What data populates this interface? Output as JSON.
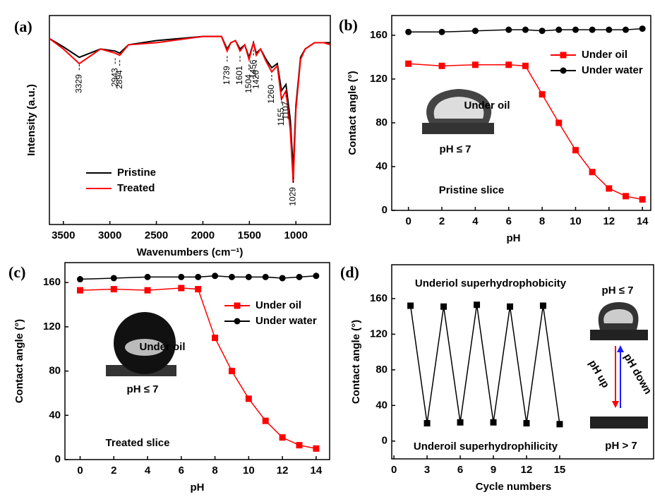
{
  "chart_data": [
    {
      "type": "line",
      "panel_label": "(a)",
      "x_label": "Wavenumbers (cm⁻¹)",
      "y_label": "Intensity (a.u.)",
      "xlim": [
        3650,
        630
      ],
      "xticks": [
        3500,
        3000,
        2500,
        2000,
        1500,
        1000
      ],
      "ylim": [
        0,
        100
      ],
      "x": [
        3650,
        3500,
        3329,
        3100,
        2943,
        2894,
        2800,
        2500,
        2000,
        1800,
        1739,
        1700,
        1650,
        1601,
        1550,
        1504,
        1456,
        1426,
        1380,
        1320,
        1260,
        1200,
        1155,
        1107,
        1060,
        1029,
        1000,
        950,
        900,
        800,
        700,
        630
      ],
      "series": [
        {
          "name": "Pristine",
          "color": "#000000",
          "values": [
            89,
            85,
            80,
            84,
            83,
            82,
            86,
            88,
            90,
            90,
            84,
            87,
            88,
            84,
            86,
            80,
            87,
            82,
            84,
            79,
            75,
            77,
            64,
            67,
            50,
            26,
            57,
            80,
            84,
            87,
            87,
            87
          ]
        },
        {
          "name": "Treated",
          "color": "#ff0000",
          "values": [
            89,
            84,
            77,
            84,
            82,
            81,
            86,
            87,
            90,
            90,
            83,
            87,
            88,
            83,
            86,
            79,
            87,
            81,
            84,
            78,
            73,
            76,
            60,
            64,
            45,
            20,
            55,
            79,
            84,
            87,
            87,
            86
          ]
        }
      ],
      "peak_labels": [
        3329,
        2943,
        2894,
        1739,
        1601,
        1504,
        1456,
        1426,
        1260,
        1155,
        1107,
        1029
      ]
    },
    {
      "type": "line",
      "panel_label": "(b)",
      "x_label": "pH",
      "y_label": "Contact angle (°)",
      "xlim": [
        -1,
        14.5
      ],
      "xticks": [
        0,
        2,
        4,
        6,
        8,
        10,
        12,
        14
      ],
      "ylim": [
        0,
        178
      ],
      "yticks": [
        0,
        40,
        80,
        120,
        160
      ],
      "x": [
        0,
        2,
        4,
        6,
        7,
        8,
        9,
        10,
        11,
        12,
        13,
        14
      ],
      "series": [
        {
          "name": "Under oil",
          "color": "#ff0000",
          "marker": "square",
          "values": [
            134,
            132,
            133,
            133,
            132,
            106,
            80,
            55,
            35,
            20,
            13,
            10
          ]
        },
        {
          "name": "Under water",
          "color": "#000000",
          "marker": "circle",
          "values": [
            163,
            163,
            164,
            165,
            165,
            164,
            165,
            165,
            165,
            165,
            165,
            166
          ]
        }
      ],
      "annotations": [
        {
          "text": "Under oil",
          "color": "#ff0000"
        },
        {
          "text": "pH ≤ 7",
          "color": "#000000"
        },
        {
          "text": "Pristine slice",
          "color": "#000000"
        }
      ]
    },
    {
      "type": "line",
      "panel_label": "(c)",
      "x_label": "pH",
      "y_label": "Contact angle (°)",
      "xlim": [
        -0.9,
        14.8
      ],
      "xticks": [
        0,
        2,
        4,
        6,
        8,
        10,
        12,
        14
      ],
      "ylim": [
        0,
        178
      ],
      "yticks": [
        0,
        40,
        80,
        120,
        160
      ],
      "x": [
        0,
        2,
        4,
        6,
        7,
        8,
        9,
        10,
        11,
        12,
        13,
        14
      ],
      "series": [
        {
          "name": "Under oil",
          "color": "#ff0000",
          "marker": "square",
          "values": [
            153,
            154,
            153,
            155,
            154,
            110,
            80,
            55,
            35,
            20,
            13,
            10
          ]
        },
        {
          "name": "Under water",
          "color": "#000000",
          "marker": "circle",
          "values": [
            163,
            164,
            165,
            165,
            165,
            166,
            165,
            165,
            165,
            164,
            165,
            166
          ]
        }
      ],
      "annotations": [
        {
          "text": "Under oil",
          "color": "#ff0000"
        },
        {
          "text": "pH ≤ 7",
          "color": "#000000"
        },
        {
          "text": "Treated slice",
          "color": "#000000"
        }
      ]
    },
    {
      "type": "line",
      "panel_label": "(d)",
      "x_label": "Cycle numbers",
      "y_label": "Contact angle (°)",
      "xlim": [
        -0.2,
        23.5
      ],
      "xticks": [
        0,
        3,
        6,
        9,
        12,
        15
      ],
      "ylim": [
        -20,
        198
      ],
      "yticks": [
        0,
        40,
        80,
        120,
        160
      ],
      "x": [
        1.5,
        3,
        4.5,
        6,
        7.5,
        9,
        10.5,
        12,
        13.5,
        15
      ],
      "series": [
        {
          "color": "#000000",
          "marker": "square",
          "values": [
            152,
            20,
            151,
            21,
            153,
            21,
            151,
            20,
            152,
            19
          ]
        }
      ],
      "annotations": [
        {
          "text": "Underiol superhydrophobicity",
          "color": "#1a1aff"
        },
        {
          "text": "Underoil superhydrophilicity",
          "color": "#ff0000"
        },
        {
          "text": "pH ≤ 7",
          "color": "#1a1aff"
        },
        {
          "text": "pH > 7",
          "color": "#ff0000"
        },
        {
          "text": "pH up",
          "color": "#ff0000"
        },
        {
          "text": "pH down",
          "color": "#1a1aff"
        }
      ]
    }
  ]
}
